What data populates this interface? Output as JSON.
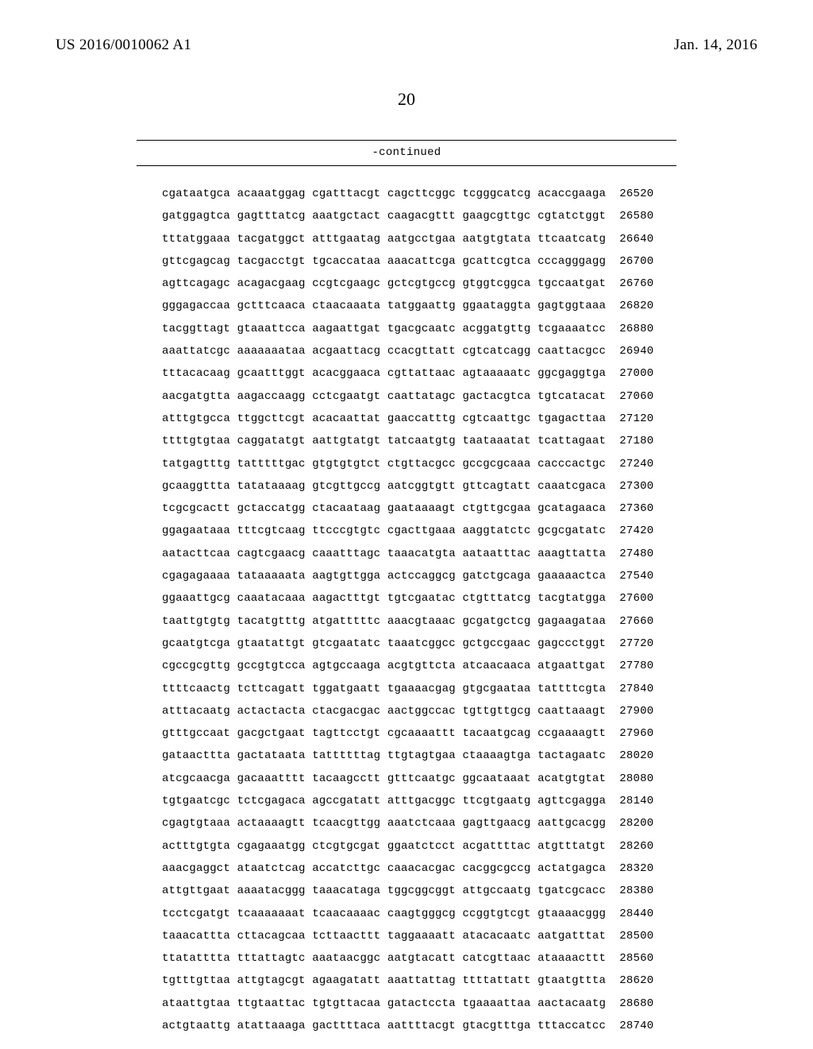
{
  "header": {
    "left": "US 2016/0010062 A1",
    "right": "Jan. 14, 2016",
    "page_number": "20",
    "continued_label": "-continued"
  },
  "sequence": {
    "rows": [
      {
        "groups": [
          "cgataatgca",
          "acaaatggag",
          "cgatttacgt",
          "cagcttcggc",
          "tcgggcatcg",
          "acaccgaaga"
        ],
        "pos": "26520"
      },
      {
        "groups": [
          "gatggagtca",
          "gagtttatcg",
          "aaatgctact",
          "caagacgttt",
          "gaagcgttgc",
          "cgtatctggt"
        ],
        "pos": "26580"
      },
      {
        "groups": [
          "tttatggaaa",
          "tacgatggct",
          "atttgaatag",
          "aatgcctgaa",
          "aatgtgtata",
          "ttcaatcatg"
        ],
        "pos": "26640"
      },
      {
        "groups": [
          "gttcgagcag",
          "tacgacctgt",
          "tgcaccataa",
          "aaacattcga",
          "gcattcgtca",
          "cccagggagg"
        ],
        "pos": "26700"
      },
      {
        "groups": [
          "agttcagagc",
          "acagacgaag",
          "ccgtcgaagc",
          "gctcgtgccg",
          "gtggtcggca",
          "tgccaatgat"
        ],
        "pos": "26760"
      },
      {
        "groups": [
          "gggagaccaa",
          "gctttcaaca",
          "ctaacaaata",
          "tatggaattg",
          "ggaataggta",
          "gagtggtaaa"
        ],
        "pos": "26820"
      },
      {
        "groups": [
          "tacggttagt",
          "gtaaattcca",
          "aagaattgat",
          "tgacgcaatc",
          "acggatgttg",
          "tcgaaaatcc"
        ],
        "pos": "26880"
      },
      {
        "groups": [
          "aaattatcgc",
          "aaaaaaataa",
          "acgaattacg",
          "ccacgttatt",
          "cgtcatcagg",
          "caattacgcc"
        ],
        "pos": "26940"
      },
      {
        "groups": [
          "tttacacaag",
          "gcaatttggt",
          "acacggaaca",
          "cgttattaac",
          "agtaaaaatc",
          "ggcgaggtga"
        ],
        "pos": "27000"
      },
      {
        "groups": [
          "aacgatgtta",
          "aagaccaagg",
          "cctcgaatgt",
          "caattatagc",
          "gactacgtca",
          "tgtcatacat"
        ],
        "pos": "27060"
      },
      {
        "groups": [
          "atttgtgcca",
          "ttggcttcgt",
          "acacaattat",
          "gaaccatttg",
          "cgtcaattgc",
          "tgagacttaa"
        ],
        "pos": "27120"
      },
      {
        "groups": [
          "ttttgtgtaa",
          "caggatatgt",
          "aattgtatgt",
          "tatcaatgtg",
          "taataaatat",
          "tcattagaat"
        ],
        "pos": "27180"
      },
      {
        "groups": [
          "tatgagtttg",
          "tatttttgac",
          "gtgtgtgtct",
          "ctgttacgcc",
          "gccgcgcaaa",
          "cacccactgc"
        ],
        "pos": "27240"
      },
      {
        "groups": [
          "gcaaggttta",
          "tatataaaag",
          "gtcgttgccg",
          "aatcggtgtt",
          "gttcagtatt",
          "caaatcgaca"
        ],
        "pos": "27300"
      },
      {
        "groups": [
          "tcgcgcactt",
          "gctaccatgg",
          "ctacaataag",
          "gaataaaagt",
          "ctgttgcgaa",
          "gcatagaaca"
        ],
        "pos": "27360"
      },
      {
        "groups": [
          "ggagaataaa",
          "tttcgtcaag",
          "ttcccgtgtc",
          "cgacttgaaa",
          "aaggtatctc",
          "gcgcgatatc"
        ],
        "pos": "27420"
      },
      {
        "groups": [
          "aatacttcaa",
          "cagtcgaacg",
          "caaatttagc",
          "taaacatgta",
          "aataatttac",
          "aaagttatta"
        ],
        "pos": "27480"
      },
      {
        "groups": [
          "cgagagaaaa",
          "tataaaaata",
          "aagtgttgga",
          "actccaggcg",
          "gatctgcaga",
          "gaaaaactca"
        ],
        "pos": "27540"
      },
      {
        "groups": [
          "ggaaattgcg",
          "caaatacaaa",
          "aagactttgt",
          "tgtcgaatac",
          "ctgtttatcg",
          "tacgtatgga"
        ],
        "pos": "27600"
      },
      {
        "groups": [
          "taattgtgtg",
          "tacatgtttg",
          "atgatttttc",
          "aaacgtaaac",
          "gcgatgctcg",
          "gagaagataa"
        ],
        "pos": "27660"
      },
      {
        "groups": [
          "gcaatgtcga",
          "gtaatattgt",
          "gtcgaatatc",
          "taaatcggcc",
          "gctgccgaac",
          "gagccctggt"
        ],
        "pos": "27720"
      },
      {
        "groups": [
          "cgccgcgttg",
          "gccgtgtcca",
          "agtgccaaga",
          "acgtgttcta",
          "atcaacaaca",
          "atgaattgat"
        ],
        "pos": "27780"
      },
      {
        "groups": [
          "ttttcaactg",
          "tcttcagatt",
          "tggatgaatt",
          "tgaaaacgag",
          "gtgcgaataa",
          "tattttcgta"
        ],
        "pos": "27840"
      },
      {
        "groups": [
          "atttacaatg",
          "actactacta",
          "ctacgacgac",
          "aactggccac",
          "tgttgttgcg",
          "caattaaagt"
        ],
        "pos": "27900"
      },
      {
        "groups": [
          "gtttgccaat",
          "gacgctgaat",
          "tagttcctgt",
          "cgcaaaattt",
          "tacaatgcag",
          "ccgaaaagtt"
        ],
        "pos": "27960"
      },
      {
        "groups": [
          "gataacttta",
          "gactataata",
          "tattttttag",
          "ttgtagtgaa",
          "ctaaaagtga",
          "tactagaatc"
        ],
        "pos": "28020"
      },
      {
        "groups": [
          "atcgcaacga",
          "gacaaatttt",
          "tacaagcctt",
          "gtttcaatgc",
          "ggcaataaat",
          "acatgtgtat"
        ],
        "pos": "28080"
      },
      {
        "groups": [
          "tgtgaatcgc",
          "tctcgagaca",
          "agccgatatt",
          "atttgacggc",
          "ttcgtgaatg",
          "agttcgagga"
        ],
        "pos": "28140"
      },
      {
        "groups": [
          "cgagtgtaaa",
          "actaaaagtt",
          "tcaacgttgg",
          "aaatctcaaa",
          "gagttgaacg",
          "aattgcacgg"
        ],
        "pos": "28200"
      },
      {
        "groups": [
          "actttgtgta",
          "cgagaaatgg",
          "ctcgtgcgat",
          "ggaatctcct",
          "acgattttac",
          "atgtttatgt"
        ],
        "pos": "28260"
      },
      {
        "groups": [
          "aaacgaggct",
          "ataatctcag",
          "accatcttgc",
          "caaacacgac",
          "cacggcgccg",
          "actatgagca"
        ],
        "pos": "28320"
      },
      {
        "groups": [
          "attgttgaat",
          "aaaatacggg",
          "taaacataga",
          "tggcggcggt",
          "attgccaatg",
          "tgatcgcacc"
        ],
        "pos": "28380"
      },
      {
        "groups": [
          "tcctcgatgt",
          "tcaaaaaaat",
          "tcaacaaaac",
          "caagtgggcg",
          "ccggtgtcgt",
          "gtaaaacggg"
        ],
        "pos": "28440"
      },
      {
        "groups": [
          "taaacattta",
          "cttacagcaa",
          "tcttaacttt",
          "taggaaaatt",
          "atacacaatc",
          "aatgatttat"
        ],
        "pos": "28500"
      },
      {
        "groups": [
          "ttatatttta",
          "tttattagtc",
          "aaataacggc",
          "aatgtacatt",
          "catcgttaac",
          "ataaaacttt"
        ],
        "pos": "28560"
      },
      {
        "groups": [
          "tgtttgttaa",
          "attgtagcgt",
          "agaagatatt",
          "aaattattag",
          "ttttattatt",
          "gtaatgttta"
        ],
        "pos": "28620"
      },
      {
        "groups": [
          "ataattgtaa",
          "ttgtaattac",
          "tgtgttacaa",
          "gatactccta",
          "tgaaaattaa",
          "aactacaatg"
        ],
        "pos": "28680"
      },
      {
        "groups": [
          "actgtaattg",
          "atattaaaga",
          "gacttttaca",
          "aattttacgt",
          "gtacgtttga",
          "tttaccatcc"
        ],
        "pos": "28740"
      }
    ]
  }
}
